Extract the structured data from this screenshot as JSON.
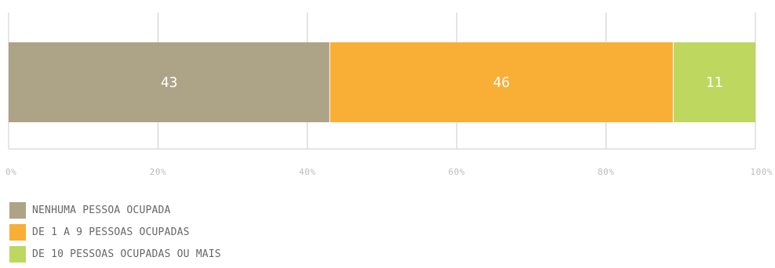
{
  "chart_data": {
    "type": "bar",
    "orientation": "horizontal",
    "stacked": true,
    "categories": [
      ""
    ],
    "series": [
      {
        "name": "NENHUMA PESSOA OCUPADA",
        "values": [
          43
        ],
        "color": "#ada386"
      },
      {
        "name": "DE 1 A 9 PESSOAS OCUPADAS",
        "values": [
          46
        ],
        "color": "#f9ae35"
      },
      {
        "name": "DE 10 PESSOAS OCUPADAS OU MAIS",
        "values": [
          11
        ],
        "color": "#bdd75f"
      }
    ],
    "xlim": [
      0,
      100
    ],
    "x_ticks": [
      0,
      20,
      40,
      60,
      80,
      100
    ],
    "x_tick_labels": [
      "0%",
      "20%",
      "40%",
      "60%",
      "80%",
      "100%"
    ],
    "grid": true,
    "legend_position": "bottom-left"
  }
}
